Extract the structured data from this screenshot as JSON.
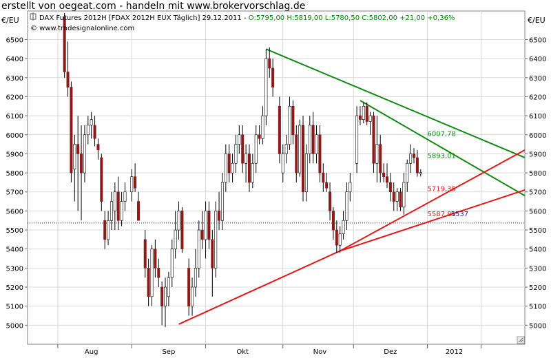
{
  "header": {
    "banner": "erstellt von oegeat.com - handeln mit www.brokervorschlag.de",
    "info_prefix": "DAX Futures 2012H [FDAX 2012H EUX  Täglich] 29.12.2011 - ",
    "ohlc": "O:5795,00 H:5819,00 L:5780,50 C:5802,00 +21,00 +0,36%",
    "copyright": "© www.tradesignalonline.com"
  },
  "colors": {
    "up_candle": "#ffffff",
    "down_candle": "#8b1a1a",
    "wick": "#000000",
    "trend_down": "#118811",
    "trend_up": "#e01818",
    "ohlc_text": "#008800",
    "label_green": "#118811",
    "label_red": "#e01818",
    "label_navy": "#1a1a8c",
    "grid": "#d9d9d9"
  },
  "chart_data": {
    "type": "candlestick",
    "y_unit_left": "€/EU",
    "y_unit_right": "€/EU",
    "ylim": [
      4900,
      6650
    ],
    "y_ticks": [
      5000,
      5100,
      5200,
      5300,
      5400,
      5500,
      5600,
      5700,
      5800,
      5900,
      6000,
      6100,
      6200,
      6300,
      6400,
      6500
    ],
    "x_range": [
      0,
      148
    ],
    "x_ticks": [
      {
        "label": "Aug",
        "x": 19
      },
      {
        "label": "Sep",
        "x": 42
      },
      {
        "label": "Okt",
        "x": 64
      },
      {
        "label": "Nov",
        "x": 87
      },
      {
        "label": "Dez",
        "x": 108
      },
      {
        "label": "2012",
        "x": 127
      }
    ],
    "x_separators": [
      9,
      31,
      53,
      76,
      97,
      119,
      135
    ],
    "grid": true,
    "candles": [
      {
        "x": 11,
        "o": 6620,
        "h": 6640,
        "l": 6300,
        "c": 6330
      },
      {
        "x": 12,
        "o": 6330,
        "h": 6490,
        "l": 6200,
        "c": 6250
      },
      {
        "x": 13,
        "o": 6250,
        "h": 6280,
        "l": 5750,
        "c": 5800
      },
      {
        "x": 14,
        "o": 5820,
        "h": 6000,
        "l": 5650,
        "c": 5950
      },
      {
        "x": 15,
        "o": 5950,
        "h": 6100,
        "l": 5600,
        "c": 5900
      },
      {
        "x": 16,
        "o": 5900,
        "h": 6050,
        "l": 5550,
        "c": 5800
      },
      {
        "x": 17,
        "o": 5800,
        "h": 6050,
        "l": 5750,
        "c": 6000
      },
      {
        "x": 18,
        "o": 6000,
        "h": 6100,
        "l": 5950,
        "c": 6050
      },
      {
        "x": 19,
        "o": 6050,
        "h": 6120,
        "l": 5980,
        "c": 6080
      },
      {
        "x": 20,
        "o": 6050,
        "h": 6100,
        "l": 5940,
        "c": 5980
      },
      {
        "x": 21,
        "o": 5950,
        "h": 5980,
        "l": 5870,
        "c": 5920
      },
      {
        "x": 22,
        "o": 5880,
        "h": 5900,
        "l": 5600,
        "c": 5650
      },
      {
        "x": 23,
        "o": 5550,
        "h": 5600,
        "l": 5400,
        "c": 5450
      },
      {
        "x": 24,
        "o": 5450,
        "h": 5600,
        "l": 5420,
        "c": 5550
      },
      {
        "x": 25,
        "o": 5550,
        "h": 5700,
        "l": 5500,
        "c": 5650
      },
      {
        "x": 26,
        "o": 5600,
        "h": 5750,
        "l": 5500,
        "c": 5700
      },
      {
        "x": 27,
        "o": 5700,
        "h": 5780,
        "l": 5500,
        "c": 5550
      },
      {
        "x": 28,
        "o": 5550,
        "h": 5700,
        "l": 5520,
        "c": 5650
      },
      {
        "x": 29,
        "o": 5650,
        "h": 5750,
        "l": 5600,
        "c": 5700
      },
      {
        "x": 31,
        "o": 5700,
        "h": 5820,
        "l": 5650,
        "c": 5780
      },
      {
        "x": 32,
        "o": 5780,
        "h": 5850,
        "l": 5700,
        "c": 5720
      },
      {
        "x": 33,
        "o": 5650,
        "h": 5700,
        "l": 5550,
        "c": 5550
      },
      {
        "x": 35,
        "o": 5450,
        "h": 5500,
        "l": 5250,
        "c": 5300
      },
      {
        "x": 36,
        "o": 5300,
        "h": 5350,
        "l": 5100,
        "c": 5150
      },
      {
        "x": 37,
        "o": 5150,
        "h": 5420,
        "l": 5100,
        "c": 5400
      },
      {
        "x": 38,
        "o": 5400,
        "h": 5450,
        "l": 5250,
        "c": 5300
      },
      {
        "x": 39,
        "o": 5300,
        "h": 5350,
        "l": 5200,
        "c": 5250
      },
      {
        "x": 40,
        "o": 5200,
        "h": 5230,
        "l": 5000,
        "c": 5100
      },
      {
        "x": 41,
        "o": 5100,
        "h": 5250,
        "l": 4990,
        "c": 5200
      },
      {
        "x": 42,
        "o": 5150,
        "h": 5280,
        "l": 5100,
        "c": 5250
      },
      {
        "x": 43,
        "o": 5250,
        "h": 5450,
        "l": 5200,
        "c": 5400
      },
      {
        "x": 44,
        "o": 5400,
        "h": 5600,
        "l": 5350,
        "c": 5500
      },
      {
        "x": 45,
        "o": 5500,
        "h": 5650,
        "l": 5450,
        "c": 5600
      },
      {
        "x": 46,
        "o": 5600,
        "h": 5620,
        "l": 5380,
        "c": 5400
      },
      {
        "x": 48,
        "o": 5300,
        "h": 5350,
        "l": 5050,
        "c": 5100
      },
      {
        "x": 49,
        "o": 5100,
        "h": 5250,
        "l": 5050,
        "c": 5200
      },
      {
        "x": 50,
        "o": 5200,
        "h": 5400,
        "l": 5150,
        "c": 5300
      },
      {
        "x": 51,
        "o": 5300,
        "h": 5550,
        "l": 5250,
        "c": 5500
      },
      {
        "x": 52,
        "o": 5500,
        "h": 5600,
        "l": 5400,
        "c": 5450
      },
      {
        "x": 53,
        "o": 5450,
        "h": 5650,
        "l": 5350,
        "c": 5600
      },
      {
        "x": 54,
        "o": 5600,
        "h": 5650,
        "l": 5400,
        "c": 5450
      },
      {
        "x": 55,
        "o": 5450,
        "h": 5500,
        "l": 5150,
        "c": 5300
      },
      {
        "x": 56,
        "o": 5300,
        "h": 5650,
        "l": 5250,
        "c": 5600
      },
      {
        "x": 57,
        "o": 5600,
        "h": 5700,
        "l": 5500,
        "c": 5550
      },
      {
        "x": 58,
        "o": 5550,
        "h": 5800,
        "l": 5500,
        "c": 5750
      },
      {
        "x": 59,
        "o": 5750,
        "h": 5950,
        "l": 5700,
        "c": 5900
      },
      {
        "x": 60,
        "o": 5900,
        "h": 5950,
        "l": 5750,
        "c": 5800
      },
      {
        "x": 61,
        "o": 5800,
        "h": 5900,
        "l": 5750,
        "c": 5850
      },
      {
        "x": 62,
        "o": 5850,
        "h": 6000,
        "l": 5800,
        "c": 5950
      },
      {
        "x": 63,
        "o": 5950,
        "h": 6050,
        "l": 5900,
        "c": 6000
      },
      {
        "x": 64,
        "o": 6000,
        "h": 6050,
        "l": 5800,
        "c": 5850
      },
      {
        "x": 65,
        "o": 5850,
        "h": 5950,
        "l": 5750,
        "c": 5900
      },
      {
        "x": 66,
        "o": 5900,
        "h": 5950,
        "l": 5700,
        "c": 5750
      },
      {
        "x": 67,
        "o": 5750,
        "h": 5900,
        "l": 5720,
        "c": 5850
      },
      {
        "x": 68,
        "o": 5850,
        "h": 6050,
        "l": 5800,
        "c": 6000
      },
      {
        "x": 69,
        "o": 6000,
        "h": 6050,
        "l": 5950,
        "c": 5980
      },
      {
        "x": 70,
        "o": 5980,
        "h": 6150,
        "l": 5950,
        "c": 6100
      },
      {
        "x": 71,
        "o": 6100,
        "h": 6450,
        "l": 6050,
        "c": 6400
      },
      {
        "x": 72,
        "o": 6400,
        "h": 6460,
        "l": 6300,
        "c": 6350
      },
      {
        "x": 73,
        "o": 6350,
        "h": 6400,
        "l": 6200,
        "c": 6250
      },
      {
        "x": 75,
        "o": 6150,
        "h": 6200,
        "l": 5850,
        "c": 5900
      },
      {
        "x": 76,
        "o": 5800,
        "h": 5950,
        "l": 5750,
        "c": 5900
      },
      {
        "x": 77,
        "o": 5900,
        "h": 6000,
        "l": 5850,
        "c": 5950
      },
      {
        "x": 78,
        "o": 5950,
        "h": 6200,
        "l": 5920,
        "c": 6150
      },
      {
        "x": 79,
        "o": 6150,
        "h": 6180,
        "l": 5950,
        "c": 6000
      },
      {
        "x": 80,
        "o": 6000,
        "h": 6050,
        "l": 5750,
        "c": 5800
      },
      {
        "x": 81,
        "o": 5800,
        "h": 6080,
        "l": 5780,
        "c": 6050
      },
      {
        "x": 82,
        "o": 6050,
        "h": 6100,
        "l": 5650,
        "c": 5700
      },
      {
        "x": 83,
        "o": 5700,
        "h": 5950,
        "l": 5650,
        "c": 5900
      },
      {
        "x": 84,
        "o": 5900,
        "h": 6100,
        "l": 5850,
        "c": 6050
      },
      {
        "x": 85,
        "o": 6050,
        "h": 6120,
        "l": 5850,
        "c": 5900
      },
      {
        "x": 86,
        "o": 5900,
        "h": 6050,
        "l": 5850,
        "c": 6000
      },
      {
        "x": 87,
        "o": 6000,
        "h": 6050,
        "l": 5750,
        "c": 5800
      },
      {
        "x": 88,
        "o": 5800,
        "h": 5850,
        "l": 5700,
        "c": 5750
      },
      {
        "x": 89,
        "o": 5750,
        "h": 5800,
        "l": 5700,
        "c": 5720
      },
      {
        "x": 90,
        "o": 5700,
        "h": 5750,
        "l": 5550,
        "c": 5600
      },
      {
        "x": 91,
        "o": 5600,
        "h": 5620,
        "l": 5450,
        "c": 5500
      },
      {
        "x": 92,
        "o": 5500,
        "h": 5550,
        "l": 5380,
        "c": 5420
      },
      {
        "x": 93,
        "o": 5420,
        "h": 5520,
        "l": 5380,
        "c": 5480
      },
      {
        "x": 94,
        "o": 5480,
        "h": 5600,
        "l": 5450,
        "c": 5550
      },
      {
        "x": 95,
        "o": 5550,
        "h": 5750,
        "l": 5500,
        "c": 5700
      },
      {
        "x": 96,
        "o": 5700,
        "h": 5800,
        "l": 5650,
        "c": 5750
      },
      {
        "x": 98,
        "o": 5850,
        "h": 6150,
        "l": 5800,
        "c": 6100
      },
      {
        "x": 99,
        "o": 6100,
        "h": 6150,
        "l": 6050,
        "c": 6080
      },
      {
        "x": 100,
        "o": 6080,
        "h": 6170,
        "l": 6060,
        "c": 6150
      },
      {
        "x": 101,
        "o": 6150,
        "h": 6170,
        "l": 6050,
        "c": 6070
      },
      {
        "x": 102,
        "o": 6070,
        "h": 6120,
        "l": 6000,
        "c": 6100
      },
      {
        "x": 103,
        "o": 6100,
        "h": 6120,
        "l": 5800,
        "c": 5850
      },
      {
        "x": 104,
        "o": 5850,
        "h": 6100,
        "l": 5750,
        "c": 5950
      },
      {
        "x": 105,
        "o": 5950,
        "h": 6000,
        "l": 5750,
        "c": 5800
      },
      {
        "x": 106,
        "o": 5800,
        "h": 5850,
        "l": 5750,
        "c": 5780
      },
      {
        "x": 107,
        "o": 5780,
        "h": 5850,
        "l": 5720,
        "c": 5750
      },
      {
        "x": 108,
        "o": 5750,
        "h": 5800,
        "l": 5650,
        "c": 5700
      },
      {
        "x": 109,
        "o": 5700,
        "h": 5750,
        "l": 5600,
        "c": 5650
      },
      {
        "x": 110,
        "o": 5650,
        "h": 5720,
        "l": 5600,
        "c": 5700
      },
      {
        "x": 111,
        "o": 5700,
        "h": 5720,
        "l": 5600,
        "c": 5620
      },
      {
        "x": 112,
        "o": 5620,
        "h": 5800,
        "l": 5580,
        "c": 5750
      },
      {
        "x": 113,
        "o": 5750,
        "h": 5870,
        "l": 5700,
        "c": 5850
      },
      {
        "x": 114,
        "o": 5850,
        "h": 5950,
        "l": 5800,
        "c": 5900
      },
      {
        "x": 115,
        "o": 5900,
        "h": 5930,
        "l": 5850,
        "c": 5880
      },
      {
        "x": 116,
        "o": 5880,
        "h": 5920,
        "l": 5780,
        "c": 5800
      },
      {
        "x": 117,
        "o": 5795,
        "h": 5819,
        "l": 5780.5,
        "c": 5802
      }
    ],
    "trendlines": [
      {
        "name": "down-long",
        "color": "trend_down",
        "points": [
          [
            71,
            6450
          ],
          [
            148,
            5880
          ]
        ]
      },
      {
        "name": "down-short",
        "color": "trend_down",
        "points": [
          [
            99,
            6180
          ],
          [
            148,
            5680
          ]
        ]
      },
      {
        "name": "up-lower",
        "color": "trend_up",
        "points": [
          [
            45,
            5005
          ],
          [
            93,
            5390
          ],
          [
            148,
            5710
          ]
        ]
      },
      {
        "name": "up-upper",
        "color": "trend_up",
        "points": [
          [
            93,
            5390
          ],
          [
            148,
            5920
          ]
        ]
      }
    ],
    "hline": {
      "value": 5537,
      "style": "dotted"
    },
    "annotations": [
      {
        "text": "6007,78",
        "x": 119,
        "y": 6007.78,
        "color": "label_green"
      },
      {
        "text": "5893,01",
        "x": 119,
        "y": 5893.01,
        "color": "label_green"
      },
      {
        "text": "5719,35",
        "x": 119,
        "y": 5719.35,
        "color": "label_red"
      },
      {
        "text": "5587,81",
        "x": 119,
        "y": 5587.81,
        "color": "label_red"
      },
      {
        "text": "5537",
        "x": 126,
        "y": 5587.81,
        "color": "label_navy"
      }
    ]
  }
}
